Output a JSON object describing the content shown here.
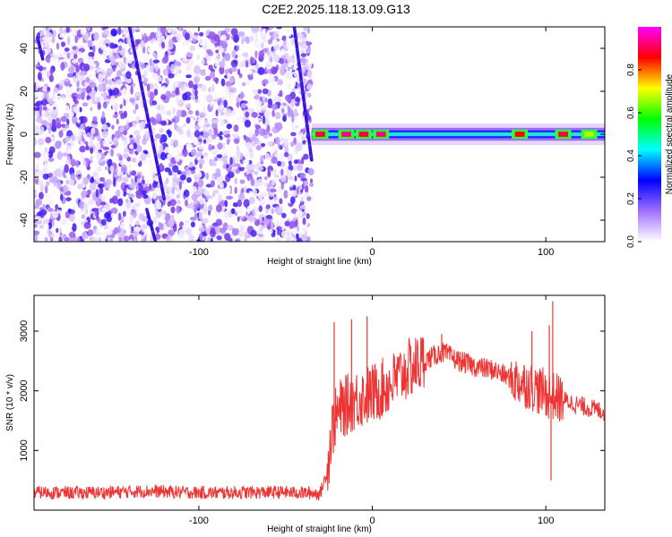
{
  "title": "C2E2.2025.118.13.09.G13",
  "chart_data": [
    {
      "type": "heatmap",
      "xlabel": "Height of straight line (km)",
      "ylabel": "Frequency (Hz)",
      "xlim": [
        -195,
        134
      ],
      "ylim": [
        -50,
        50
      ],
      "xticks": [
        -100,
        0,
        100
      ],
      "yticks": [
        -40,
        -20,
        0,
        20,
        40
      ],
      "colorbar": {
        "label": "Normalized spectral amplitude",
        "range": [
          0.0,
          1.0
        ],
        "ticks": [
          "0.0",
          "0.2",
          "0.4",
          "0.6",
          "0.8"
        ],
        "colors": [
          "#ffffff",
          "#a070ff",
          "#0000ff",
          "#00ffff",
          "#00ff00",
          "#ffff00",
          "#ff0000",
          "#ff00ff"
        ]
      },
      "noise_region": {
        "x_start": -195,
        "x_end": -35,
        "amplitude_range": [
          0.0,
          0.15
        ]
      },
      "streaks": [
        {
          "x": [
            -140,
            -120
          ],
          "y": [
            50,
            -30
          ],
          "amplitude": 0.18
        },
        {
          "x": [
            -45,
            -35
          ],
          "y": [
            50,
            -12
          ],
          "amplitude": 0.18
        },
        {
          "x": [
            -193,
            -190
          ],
          "y": [
            45,
            35
          ],
          "amplitude": 0.15
        },
        {
          "x": [
            -130,
            -125
          ],
          "y": [
            -35,
            -50
          ],
          "amplitude": 0.12
        }
      ],
      "carrier": {
        "x_start": -35,
        "x_end": 134,
        "freq": 0,
        "amplitude_peaks": [
          {
            "x": -30,
            "amplitude": 0.85
          },
          {
            "x": -15,
            "amplitude": 0.9
          },
          {
            "x": -5,
            "amplitude": 0.85
          },
          {
            "x": 5,
            "amplitude": 0.9
          },
          {
            "x": 85,
            "amplitude": 0.8
          },
          {
            "x": 110,
            "amplitude": 0.85
          },
          {
            "x": 125,
            "amplitude": 0.6
          }
        ]
      }
    },
    {
      "type": "line",
      "xlabel": "Height of straight line (km)",
      "ylabel": "SNR (10 * v/v)",
      "xlim": [
        -195,
        134
      ],
      "ylim": [
        0,
        3600
      ],
      "xticks": [
        -100,
        0,
        100
      ],
      "yticks": [
        1000,
        2000,
        3000
      ],
      "color": "#ee3333",
      "series": [
        {
          "x": [
            -195,
            -170,
            -150,
            -130,
            -110,
            -90,
            -70,
            -50,
            -30,
            -26,
            -24,
            -22,
            -18,
            -10,
            0,
            10,
            20,
            30,
            40,
            50,
            60,
            70,
            80,
            90,
            100,
            110,
            120,
            134
          ],
          "y": [
            300,
            290,
            300,
            320,
            300,
            290,
            300,
            300,
            280,
            650,
            1200,
            1500,
            1700,
            1850,
            1950,
            2100,
            2350,
            2500,
            2650,
            2500,
            2400,
            2350,
            2200,
            2100,
            1950,
            1850,
            1750,
            1650
          ]
        }
      ],
      "spikes": [
        {
          "x": -22,
          "y": 3150
        },
        {
          "x": -12,
          "y": 3200
        },
        {
          "x": -3,
          "y": 3250
        },
        {
          "x": 40,
          "y": 2950
        },
        {
          "x": 92,
          "y": 3000
        },
        {
          "x": 102,
          "y": 3100
        },
        {
          "x": 104,
          "y": 3500
        },
        {
          "x": 103,
          "y": 500
        }
      ]
    }
  ]
}
